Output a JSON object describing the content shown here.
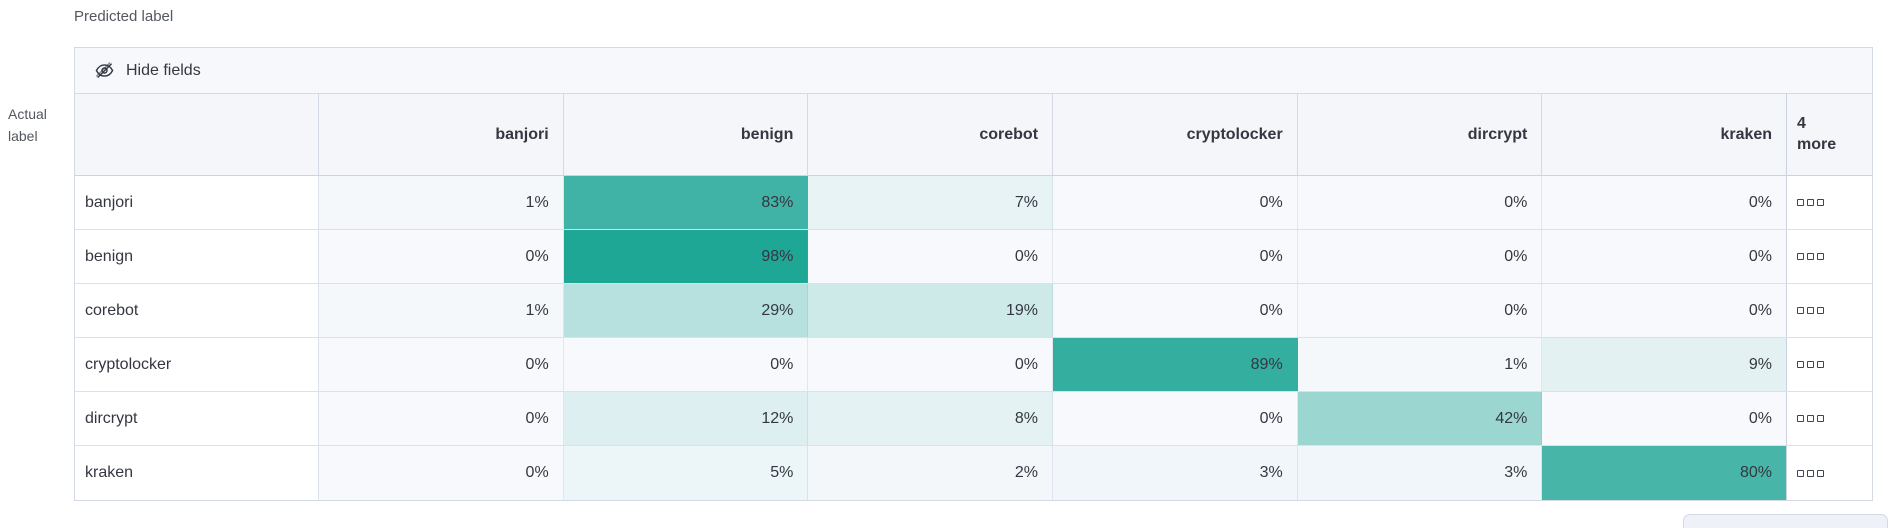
{
  "labels": {
    "predicted": "Predicted label",
    "actual": "Actual label"
  },
  "toolbar": {
    "hide_fields": "Hide fields",
    "icon": "eye-slash-icon"
  },
  "chart_data": {
    "type": "heatmap",
    "columns": [
      "banjori",
      "benign",
      "corebot",
      "cryptolocker",
      "dircrypt",
      "kraken"
    ],
    "extra_columns_label": "4 more",
    "rows": [
      {
        "label": "banjori",
        "values": [
          1,
          83,
          7,
          0,
          0,
          0
        ]
      },
      {
        "label": "benign",
        "values": [
          0,
          98,
          0,
          0,
          0,
          0
        ]
      },
      {
        "label": "corebot",
        "values": [
          1,
          29,
          19,
          0,
          0,
          0
        ]
      },
      {
        "label": "cryptolocker",
        "values": [
          0,
          0,
          0,
          89,
          1,
          9
        ]
      },
      {
        "label": "dircrypt",
        "values": [
          0,
          12,
          8,
          0,
          42,
          0
        ]
      },
      {
        "label": "kraken",
        "values": [
          0,
          5,
          2,
          3,
          3,
          80
        ]
      }
    ],
    "value_suffix": "%",
    "legend_position": "none",
    "grid": true,
    "colors": {
      "heat_base": "#1BA594",
      "cell_default_bg": "#F7F9FC",
      "header_bg": "#F4F6FA",
      "toolbar_bg": "#F6F8FC",
      "border": "#D3DAE6",
      "text": "#343741"
    },
    "more_cell_icon": "boxes-horizontal-icon"
  }
}
